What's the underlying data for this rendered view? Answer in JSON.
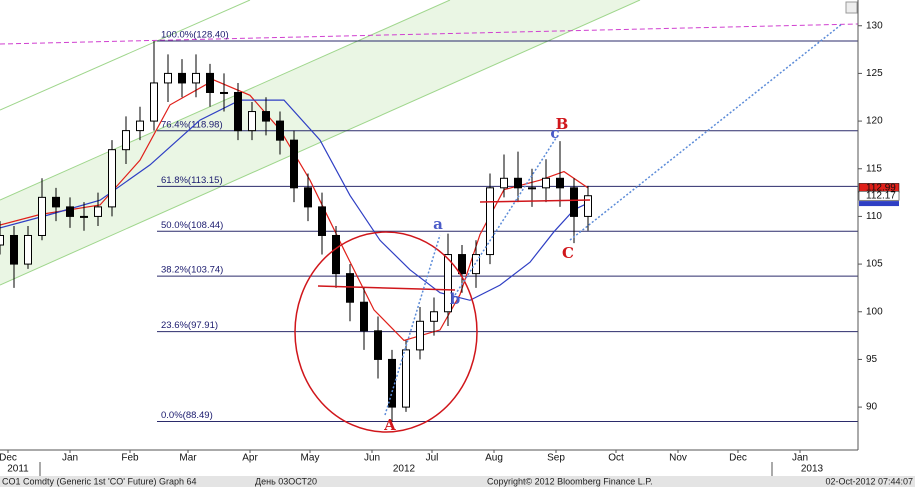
{
  "chart_data": {
    "type": "candlestick",
    "xlim": [
      11,
      440
    ],
    "ylim": [
      85.5,
      132.7
    ],
    "yticks": [
      90,
      95,
      100,
      105,
      110,
      115,
      120,
      125,
      130
    ],
    "xticks": [
      {
        "value": 15,
        "label": "Dec"
      },
      {
        "value": 46,
        "label": "Jan"
      },
      {
        "value": 76,
        "label": "Feb"
      },
      {
        "value": 105,
        "label": "Mar"
      },
      {
        "value": 136,
        "label": "Apr"
      },
      {
        "value": 166,
        "label": "May"
      },
      {
        "value": 197,
        "label": "Jun"
      },
      {
        "value": 227,
        "label": "Jul"
      },
      {
        "value": 258,
        "label": "Aug"
      },
      {
        "value": 289,
        "label": "Sep"
      },
      {
        "value": 319,
        "label": "Oct"
      },
      {
        "value": 350,
        "label": "Nov"
      },
      {
        "value": 380,
        "label": "Dec"
      },
      {
        "value": 411,
        "label": "Jan"
      }
    ],
    "year_ticks": [
      {
        "value": 20,
        "label": "2011"
      },
      {
        "value": 213,
        "label": "2012"
      },
      {
        "value": 417,
        "label": "2013"
      }
    ],
    "x": [
      11,
      18,
      25,
      32,
      39,
      46,
      53,
      60,
      67,
      74,
      81,
      88,
      95,
      102,
      109,
      116,
      123,
      130,
      137,
      144,
      151,
      158,
      165,
      172,
      179,
      186,
      193,
      200,
      207,
      214,
      221,
      228,
      235,
      242,
      249,
      256,
      263,
      270,
      277,
      284,
      291,
      298,
      305
    ],
    "open": [
      107,
      108,
      105,
      108,
      112,
      111,
      110,
      110,
      111,
      117,
      119,
      120,
      124,
      125,
      124,
      125,
      123,
      123,
      119,
      121,
      120,
      118,
      113,
      111,
      108,
      104,
      101,
      98,
      95,
      90,
      96,
      99,
      100,
      106,
      104,
      106,
      113,
      114,
      113,
      113,
      114,
      113,
      110
    ],
    "high": [
      109.5,
      109,
      109,
      114,
      113,
      112,
      111.5,
      112.5,
      118,
      120.5,
      121.5,
      128.4,
      127,
      126.5,
      127,
      126,
      125,
      124,
      122,
      122.5,
      121,
      119,
      114.5,
      112.5,
      109,
      105,
      102.5,
      99.5,
      96,
      97,
      100.5,
      101.5,
      108.2,
      107,
      107.5,
      114.5,
      116.5,
      116.8,
      115,
      116,
      117.9,
      114,
      113.2
    ],
    "low": [
      106,
      102.5,
      104.5,
      107.5,
      109.5,
      108.8,
      108.5,
      109,
      110,
      115.5,
      118,
      119,
      122,
      122.5,
      122.5,
      121.5,
      121,
      118,
      118,
      118.5,
      116.5,
      111.5,
      109.5,
      106,
      102.5,
      99,
      96,
      93,
      88.49,
      89.5,
      95,
      97.5,
      98.5,
      102,
      102.5,
      105,
      112,
      111.5,
      111,
      111.5,
      111,
      107.2,
      108.5
    ],
    "close": [
      108,
      105,
      108,
      112,
      111,
      110,
      110,
      111,
      117,
      119,
      120,
      124,
      125,
      124,
      125,
      123,
      123,
      119,
      121,
      120,
      118,
      113,
      111,
      108,
      104,
      101,
      98,
      95,
      90,
      96,
      99,
      100,
      106,
      104,
      106,
      113,
      114,
      113,
      113,
      114,
      113,
      110,
      112.17
    ],
    "series": [
      {
        "color": "#e0201a",
        "x": [
          11,
          31,
          61,
          81,
          96,
          118,
          136,
          151,
          166,
          183,
          198,
          213,
          231,
          241,
          251,
          263,
          281,
          293,
          305
        ],
        "values": [
          109.1,
          110.2,
          111.2,
          115.9,
          121.7,
          124.3,
          122.7,
          119.1,
          113.8,
          106.5,
          100.2,
          97.0,
          98.1,
          101.8,
          108.1,
          112.8,
          113.8,
          114.7,
          112.99
        ]
      },
      {
        "color": "#2f3fc4",
        "x": [
          11,
          36,
          61,
          86,
          111,
          131,
          153,
          171,
          186,
          201,
          216,
          231,
          246,
          261,
          276,
          288,
          298,
          305
        ],
        "values": [
          108.8,
          110.2,
          111.7,
          115.4,
          120.1,
          122.2,
          122.2,
          118.0,
          112.2,
          107.5,
          104.4,
          102.0,
          101.2,
          102.8,
          105.2,
          108.4,
          110.7,
          111.4
        ]
      }
    ],
    "levels": [
      {
        "value": 128.4,
        "label": "100.0%(128.40)"
      },
      {
        "value": 118.98,
        "label": "76.4%(118.98)"
      },
      {
        "value": 113.15,
        "label": "61.8%(113.15)"
      },
      {
        "value": 108.44,
        "label": "50.0%(108.44)"
      },
      {
        "value": 103.74,
        "label": "38.2%(103.74)"
      },
      {
        "value": 97.91,
        "label": "23.6%(97.91)"
      },
      {
        "value": 88.49,
        "label": "0.0%(88.49)"
      }
    ],
    "last_labels": [
      {
        "value": 112.99,
        "label": "112.99",
        "color": "#e0201a"
      },
      {
        "value": 112.17,
        "label": "112.17",
        "color": "#ffffff"
      }
    ],
    "annotations": [
      "A",
      "B",
      "C",
      "a",
      "b",
      "c"
    ]
  },
  "footer": [
    "CO1 Comdty (Generic 1st 'CO' Future) Graph 64",
    "День 03ОСТ20",
    "Copyright© 2012 Bloomberg Finance L.P.",
    "02-Oct-2012 07:44:07"
  ]
}
